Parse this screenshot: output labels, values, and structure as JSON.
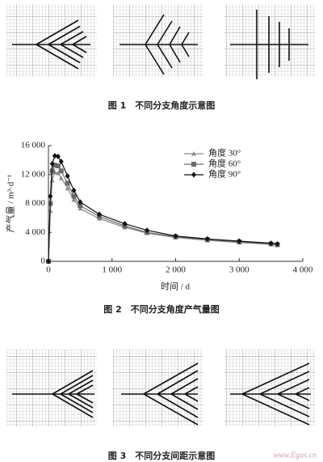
{
  "figure1": {
    "caption": "图 1　不同分支角度示意图"
  },
  "chart_data": {
    "type": "line",
    "caption": "图 2　不同分支角度产气量图",
    "x_label": "时间 / d",
    "y_label": "产气量 / m³·d⁻¹",
    "x": [
      0,
      30,
      60,
      100,
      150,
      200,
      300,
      400,
      500,
      800,
      1200,
      1550,
      2000,
      2500,
      3000,
      3500,
      3600
    ],
    "series": [
      {
        "name": "角度 30°",
        "color": "#8a8a8a",
        "marker": "triangle",
        "values": [
          0,
          7000,
          11200,
          12300,
          12200,
          11500,
          10100,
          8500,
          7300,
          5900,
          4700,
          3900,
          3300,
          2900,
          2600,
          2350,
          2250
        ]
      },
      {
        "name": "角度 60°",
        "color": "#6a6a6a",
        "marker": "square",
        "values": [
          0,
          8000,
          12500,
          13300,
          13200,
          12500,
          10800,
          9000,
          7700,
          6200,
          4900,
          4000,
          3400,
          3000,
          2700,
          2400,
          2300
        ]
      },
      {
        "name": "角度 90°",
        "color": "#111111",
        "marker": "diamond",
        "values": [
          0,
          9000,
          13500,
          14600,
          14500,
          13800,
          11800,
          9800,
          8200,
          6500,
          5200,
          4300,
          3500,
          3100,
          2800,
          2500,
          2400
        ]
      }
    ],
    "xlim": [
      0,
      4000
    ],
    "ylim": [
      0,
      16000
    ],
    "xticks": [
      0,
      {
        "value": 1000,
        "label": "1 000"
      },
      {
        "value": 2000,
        "label": "2 000"
      },
      {
        "value": 3000,
        "label": "3 000"
      },
      {
        "value": 4000,
        "label": "4 000"
      }
    ],
    "yticks": [
      0,
      {
        "value": 4000,
        "label": "4 000"
      },
      {
        "value": 8000,
        "label": "8 000"
      },
      {
        "value": 12000,
        "label": "12 000"
      },
      {
        "value": 16000,
        "label": "16 000"
      }
    ]
  },
  "figure3": {
    "caption": "图 3　不同分支间距示意图"
  },
  "watermark": "www.Egas.cn"
}
